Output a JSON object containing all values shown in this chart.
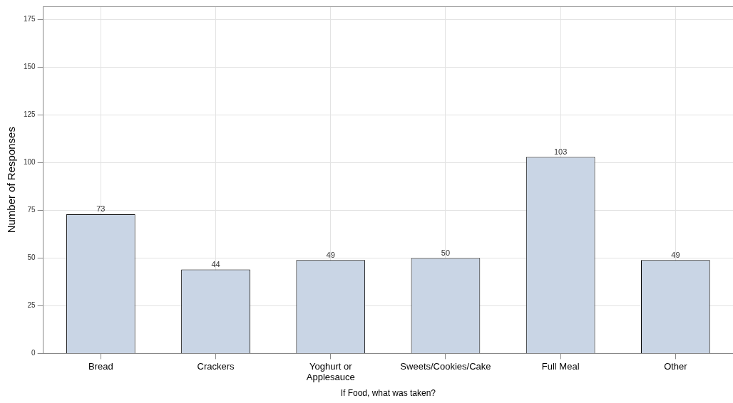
{
  "chart_data": {
    "type": "bar",
    "xlabel": "If Food, what was taken?",
    "ylabel": "Number of Responses",
    "categories": [
      "Bread",
      "Crackers",
      "Yoghurt or Applesauce",
      "Sweets/Cookies/Cake",
      "Full Meal",
      "Other"
    ],
    "values": [
      73,
      44,
      49,
      50,
      103,
      49
    ],
    "color": "#c9d5e5",
    "ylim": [
      0,
      182
    ],
    "yticks": [
      0,
      25,
      50,
      75,
      100,
      125,
      150,
      175
    ],
    "grid": true,
    "data_labels": true
  }
}
